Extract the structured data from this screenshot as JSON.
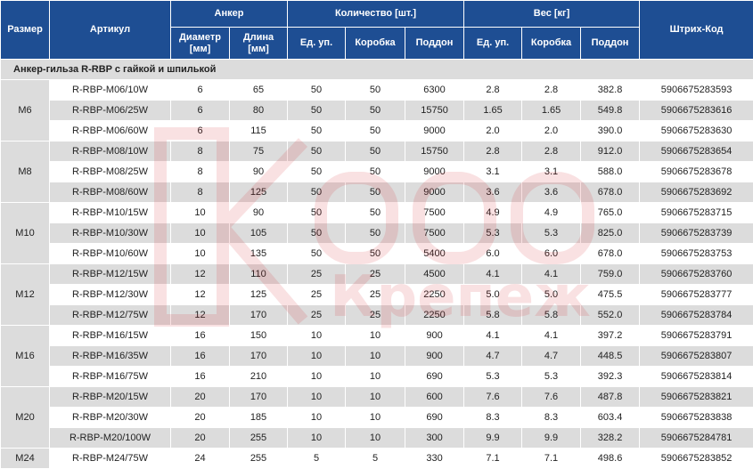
{
  "headers": {
    "size": "Размер",
    "article": "Артикул",
    "anchor": "Анкер",
    "diameter_line1": "Диаметр",
    "diameter_line2": "[мм]",
    "length_line1": "Длина",
    "length_line2": "[мм]",
    "quantity": "Количество [шт.]",
    "weight": "Вес [кг]",
    "unit": "Ед. уп.",
    "box": "Коробка",
    "pallet": "Поддон",
    "barcode": "Штрих-Код"
  },
  "section_title": "Анкер-гильза R-RBP с гайкой и шпилькой",
  "watermark": "Крепеж",
  "rows": [
    {
      "size": "M6",
      "article": "R-RBP-M06/10W",
      "diameter": "6",
      "length": "65",
      "qty_unit": "50",
      "qty_box": "50",
      "qty_pallet": "6300",
      "w_unit": "2.8",
      "w_box": "2.8",
      "w_pallet": "382.8",
      "barcode": "5906675283593"
    },
    {
      "size": "M6",
      "article": "R-RBP-M06/25W",
      "diameter": "6",
      "length": "80",
      "qty_unit": "50",
      "qty_box": "50",
      "qty_pallet": "15750",
      "w_unit": "1.65",
      "w_box": "1.65",
      "w_pallet": "549.8",
      "barcode": "5906675283616"
    },
    {
      "size": "M6",
      "article": "R-RBP-M06/60W",
      "diameter": "6",
      "length": "115",
      "qty_unit": "50",
      "qty_box": "50",
      "qty_pallet": "9000",
      "w_unit": "2.0",
      "w_box": "2.0",
      "w_pallet": "390.0",
      "barcode": "5906675283630"
    },
    {
      "size": "M8",
      "article": "R-RBP-M08/10W",
      "diameter": "8",
      "length": "75",
      "qty_unit": "50",
      "qty_box": "50",
      "qty_pallet": "15750",
      "w_unit": "2.8",
      "w_box": "2.8",
      "w_pallet": "912.0",
      "barcode": "5906675283654"
    },
    {
      "size": "M8",
      "article": "R-RBP-M08/25W",
      "diameter": "8",
      "length": "90",
      "qty_unit": "50",
      "qty_box": "50",
      "qty_pallet": "9000",
      "w_unit": "3.1",
      "w_box": "3.1",
      "w_pallet": "588.0",
      "barcode": "5906675283678"
    },
    {
      "size": "M8",
      "article": "R-RBP-M08/60W",
      "diameter": "8",
      "length": "125",
      "qty_unit": "50",
      "qty_box": "50",
      "qty_pallet": "9000",
      "w_unit": "3.6",
      "w_box": "3.6",
      "w_pallet": "678.0",
      "barcode": "5906675283692"
    },
    {
      "size": "M10",
      "article": "R-RBP-M10/15W",
      "diameter": "10",
      "length": "90",
      "qty_unit": "50",
      "qty_box": "50",
      "qty_pallet": "7500",
      "w_unit": "4.9",
      "w_box": "4.9",
      "w_pallet": "765.0",
      "barcode": "5906675283715"
    },
    {
      "size": "M10",
      "article": "R-RBP-M10/30W",
      "diameter": "10",
      "length": "105",
      "qty_unit": "50",
      "qty_box": "50",
      "qty_pallet": "7500",
      "w_unit": "5.3",
      "w_box": "5.3",
      "w_pallet": "825.0",
      "barcode": "5906675283739"
    },
    {
      "size": "M10",
      "article": "R-RBP-M10/60W",
      "diameter": "10",
      "length": "135",
      "qty_unit": "50",
      "qty_box": "50",
      "qty_pallet": "5400",
      "w_unit": "6.0",
      "w_box": "6.0",
      "w_pallet": "678.0",
      "barcode": "5906675283753"
    },
    {
      "size": "M12",
      "article": "R-RBP-M12/15W",
      "diameter": "12",
      "length": "110",
      "qty_unit": "25",
      "qty_box": "25",
      "qty_pallet": "4500",
      "w_unit": "4.1",
      "w_box": "4.1",
      "w_pallet": "759.0",
      "barcode": "5906675283760"
    },
    {
      "size": "M12",
      "article": "R-RBP-M12/30W",
      "diameter": "12",
      "length": "125",
      "qty_unit": "25",
      "qty_box": "25",
      "qty_pallet": "2250",
      "w_unit": "5.0",
      "w_box": "5.0",
      "w_pallet": "475.5",
      "barcode": "5906675283777"
    },
    {
      "size": "M12",
      "article": "R-RBP-M12/75W",
      "diameter": "12",
      "length": "170",
      "qty_unit": "25",
      "qty_box": "25",
      "qty_pallet": "2250",
      "w_unit": "5.8",
      "w_box": "5.8",
      "w_pallet": "552.0",
      "barcode": "5906675283784"
    },
    {
      "size": "M16",
      "article": "R-RBP-M16/15W",
      "diameter": "16",
      "length": "150",
      "qty_unit": "10",
      "qty_box": "10",
      "qty_pallet": "900",
      "w_unit": "4.1",
      "w_box": "4.1",
      "w_pallet": "397.2",
      "barcode": "5906675283791"
    },
    {
      "size": "M16",
      "article": "R-RBP-M16/35W",
      "diameter": "16",
      "length": "170",
      "qty_unit": "10",
      "qty_box": "10",
      "qty_pallet": "900",
      "w_unit": "4.7",
      "w_box": "4.7",
      "w_pallet": "448.5",
      "barcode": "5906675283807"
    },
    {
      "size": "M16",
      "article": "R-RBP-M16/75W",
      "diameter": "16",
      "length": "210",
      "qty_unit": "10",
      "qty_box": "10",
      "qty_pallet": "690",
      "w_unit": "5.3",
      "w_box": "5.3",
      "w_pallet": "392.3",
      "barcode": "5906675283814"
    },
    {
      "size": "M20",
      "article": "R-RBP-M20/15W",
      "diameter": "20",
      "length": "170",
      "qty_unit": "10",
      "qty_box": "10",
      "qty_pallet": "600",
      "w_unit": "7.6",
      "w_box": "7.6",
      "w_pallet": "487.8",
      "barcode": "5906675283821"
    },
    {
      "size": "M20",
      "article": "R-RBP-M20/30W",
      "diameter": "20",
      "length": "185",
      "qty_unit": "10",
      "qty_box": "10",
      "qty_pallet": "690",
      "w_unit": "8.3",
      "w_box": "8.3",
      "w_pallet": "603.4",
      "barcode": "5906675283838"
    },
    {
      "size": "M20",
      "article": "R-RBP-M20/100W",
      "diameter": "20",
      "length": "255",
      "qty_unit": "10",
      "qty_box": "10",
      "qty_pallet": "300",
      "w_unit": "9.9",
      "w_box": "9.9",
      "w_pallet": "328.2",
      "barcode": "5906675284781"
    },
    {
      "size": "M24",
      "article": "R-RBP-M24/75W",
      "diameter": "24",
      "length": "255",
      "qty_unit": "5",
      "qty_box": "5",
      "qty_pallet": "330",
      "w_unit": "7.1",
      "w_box": "7.1",
      "w_pallet": "498.6",
      "barcode": "5906675283852"
    }
  ]
}
